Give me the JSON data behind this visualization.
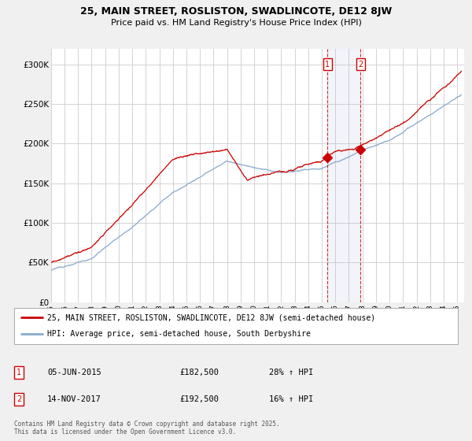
{
  "title_line1": "25, MAIN STREET, ROSLISTON, SWADLINCOTE, DE12 8JW",
  "title_line2": "Price paid vs. HM Land Registry's House Price Index (HPI)",
  "xlim_start": 1995,
  "xlim_end": 2025.5,
  "ylim_min": 0,
  "ylim_max": 320000,
  "yticks": [
    0,
    50000,
    100000,
    150000,
    200000,
    250000,
    300000
  ],
  "ytick_labels": [
    "£0",
    "£50K",
    "£100K",
    "£150K",
    "£200K",
    "£250K",
    "£300K"
  ],
  "background_color": "#f0f0f0",
  "plot_bg_color": "#ffffff",
  "grid_color": "#cccccc",
  "red_color": "#cc0000",
  "blue_color": "#88aacc",
  "sale1_x": 2015.43,
  "sale1_y": 182500,
  "sale2_x": 2017.87,
  "sale2_y": 192500,
  "legend_line1": "25, MAIN STREET, ROSLISTON, SWADLINCOTE, DE12 8JW (semi-detached house)",
  "legend_line2": "HPI: Average price, semi-detached house, South Derbyshire",
  "footnote": "Contains HM Land Registry data © Crown copyright and database right 2025.\nThis data is licensed under the Open Government Licence v3.0."
}
